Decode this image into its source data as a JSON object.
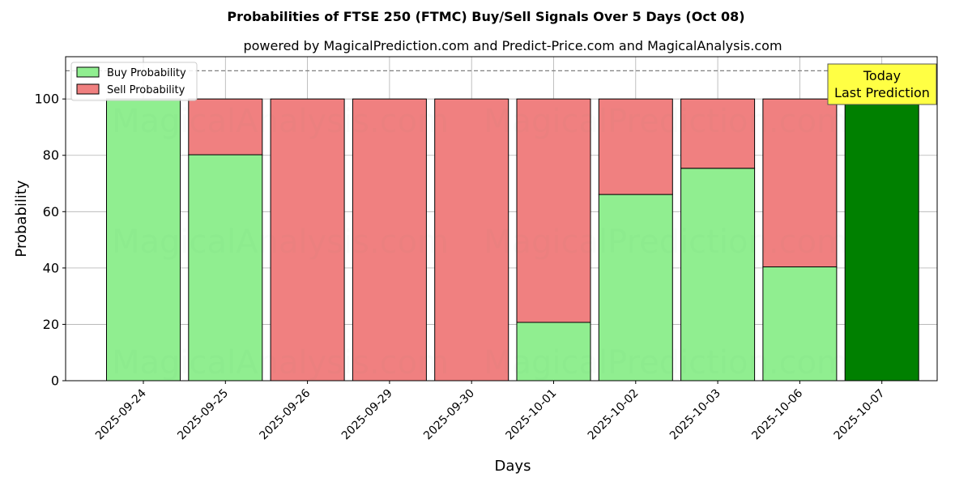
{
  "chart_data": {
    "type": "bar",
    "stacked": true,
    "title": "Probabilities of FTSE 250 (FTMC) Buy/Sell Signals Over 5 Days (Oct 08)",
    "subtitle": "powered by MagicalPrediction.com and Predict-Price.com and MagicalAnalysis.com",
    "xlabel": "Days",
    "ylabel": "Probability",
    "ylim": [
      0,
      115
    ],
    "yticks": [
      0,
      20,
      40,
      60,
      80,
      100
    ],
    "grid": true,
    "legend_position": "top-left",
    "reference_line": 110,
    "categories": [
      "2025-09-24",
      "2025-09-25",
      "2025-09-26",
      "2025-09-29",
      "2025-09-30",
      "2025-10-01",
      "2025-10-02",
      "2025-10-03",
      "2025-10-06",
      "2025-10-07"
    ],
    "series": [
      {
        "name": "Buy Probability",
        "color": "#90ee90",
        "values": [
          100,
          80.2,
          0,
          0,
          0,
          20.7,
          66.1,
          75.4,
          40.4,
          100
        ]
      },
      {
        "name": "Sell Probability",
        "color": "#f08080",
        "values": [
          0,
          19.8,
          100,
          100,
          100,
          79.3,
          33.9,
          24.6,
          59.6,
          0
        ]
      }
    ],
    "highlight": {
      "index": 9,
      "color": "#008000"
    },
    "annotation": {
      "line1": "Today",
      "line2": "Last Prediction",
      "background": "#ffff44"
    },
    "watermarks": [
      "MagicalAnalysis.com",
      "MagicalPrediction.com"
    ]
  }
}
